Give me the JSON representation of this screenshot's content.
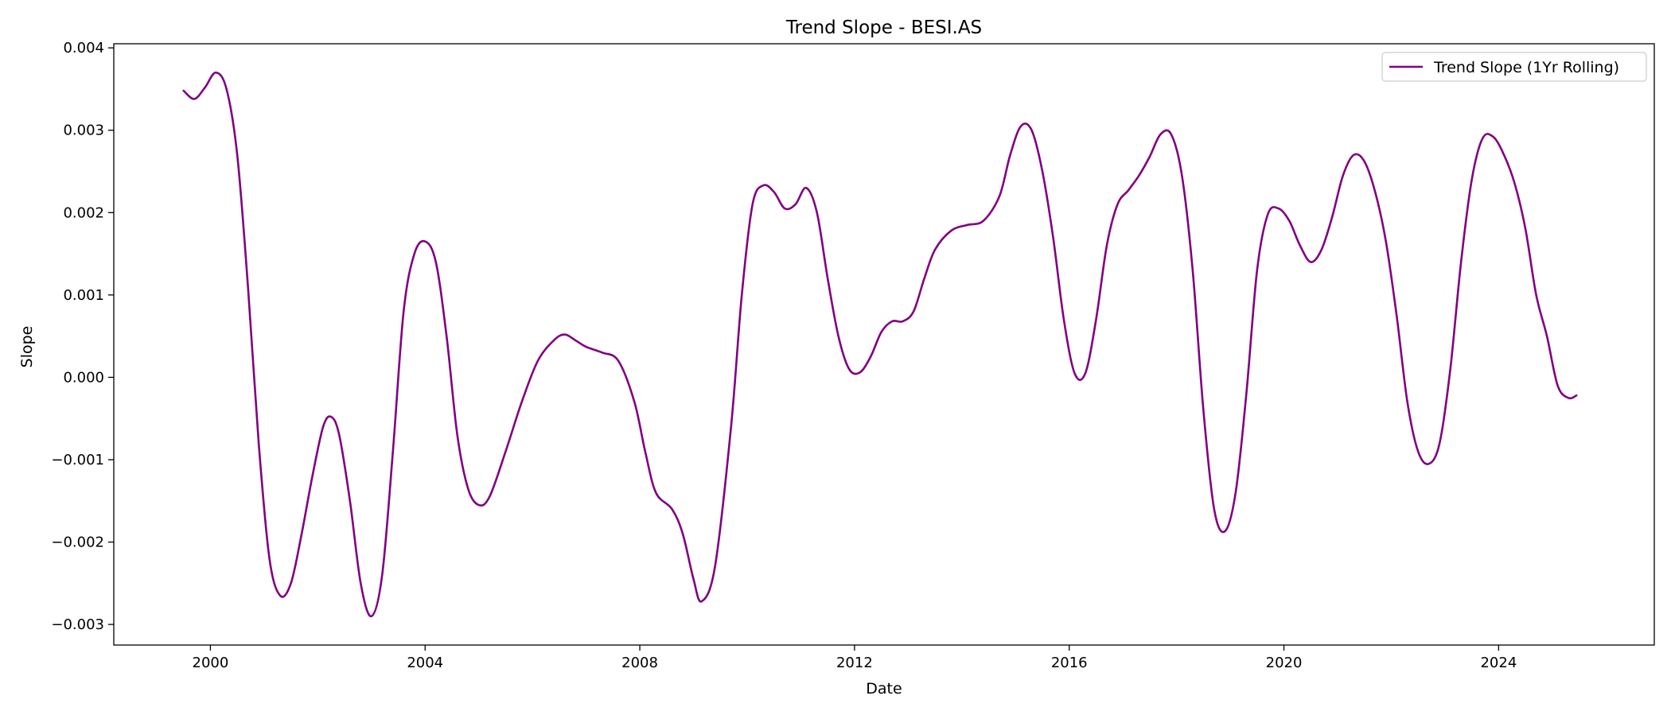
{
  "chart_data": {
    "type": "line",
    "title": "Trend Slope - BESI.AS",
    "xlabel": "Date",
    "ylabel": "Slope",
    "xlim": [
      1998.2,
      2026.9
    ],
    "ylim": [
      -0.00325,
      0.00405
    ],
    "x_ticks": [
      2000,
      2004,
      2008,
      2012,
      2016,
      2020,
      2024
    ],
    "x_tick_labels": [
      "2000",
      "2004",
      "2008",
      "2012",
      "2016",
      "2020",
      "2024"
    ],
    "y_ticks": [
      -0.003,
      -0.002,
      -0.001,
      0.0,
      0.001,
      0.002,
      0.003,
      0.004
    ],
    "y_tick_labels": [
      "−0.003",
      "−0.002",
      "−0.001",
      "0.000",
      "0.001",
      "0.002",
      "0.003",
      "0.004"
    ],
    "grid": false,
    "legend": {
      "position": "top-right"
    },
    "series": [
      {
        "name": "Trend Slope (1Yr Rolling)",
        "color": "#800080",
        "x": [
          1999.5,
          1999.7,
          1999.9,
          2000.1,
          2000.3,
          2000.5,
          2000.7,
          2000.9,
          2001.1,
          2001.3,
          2001.5,
          2001.7,
          2001.9,
          2002.1,
          2002.25,
          2002.4,
          2002.6,
          2002.8,
          2003.0,
          2003.2,
          2003.4,
          2003.6,
          2003.8,
          2004.0,
          2004.2,
          2004.4,
          2004.6,
          2004.8,
          2005.0,
          2005.2,
          2005.5,
          2005.8,
          2006.1,
          2006.4,
          2006.6,
          2006.8,
          2007.0,
          2007.3,
          2007.6,
          2007.9,
          2008.1,
          2008.3,
          2008.6,
          2008.8,
          2009.0,
          2009.15,
          2009.4,
          2009.7,
          2009.9,
          2010.1,
          2010.3,
          2010.5,
          2010.7,
          2010.9,
          2011.1,
          2011.3,
          2011.5,
          2011.7,
          2011.9,
          2012.1,
          2012.3,
          2012.5,
          2012.7,
          2012.9,
          2013.1,
          2013.3,
          2013.5,
          2013.8,
          2014.1,
          2014.4,
          2014.7,
          2014.9,
          2015.1,
          2015.3,
          2015.5,
          2015.7,
          2015.9,
          2016.1,
          2016.3,
          2016.5,
          2016.7,
          2016.9,
          2017.1,
          2017.3,
          2017.5,
          2017.7,
          2017.9,
          2018.1,
          2018.3,
          2018.5,
          2018.7,
          2018.9,
          2019.1,
          2019.3,
          2019.5,
          2019.7,
          2019.9,
          2020.1,
          2020.3,
          2020.5,
          2020.7,
          2020.9,
          2021.1,
          2021.3,
          2021.5,
          2021.7,
          2021.9,
          2022.1,
          2022.3,
          2022.5,
          2022.7,
          2022.9,
          2023.1,
          2023.3,
          2023.5,
          2023.7,
          2023.9,
          2024.1,
          2024.3,
          2024.5,
          2024.7,
          2024.9,
          2025.1,
          2025.3,
          2025.45
        ],
        "values": [
          0.00348,
          0.00338,
          0.00352,
          0.0037,
          0.0035,
          0.0027,
          0.0011,
          -0.0008,
          -0.0022,
          -0.00265,
          -0.0025,
          -0.0019,
          -0.0012,
          -0.0006,
          -0.00048,
          -0.0007,
          -0.0015,
          -0.0025,
          -0.0029,
          -0.0024,
          -0.0009,
          0.0008,
          0.0015,
          0.00165,
          0.0014,
          0.0005,
          -0.0007,
          -0.00135,
          -0.00155,
          -0.00145,
          -0.0009,
          -0.0003,
          0.0002,
          0.00045,
          0.00052,
          0.00045,
          0.00037,
          0.0003,
          0.0002,
          -0.0003,
          -0.0009,
          -0.0014,
          -0.0016,
          -0.0019,
          -0.00245,
          -0.00272,
          -0.0023,
          -0.0006,
          0.001,
          0.0021,
          0.00233,
          0.00225,
          0.00205,
          0.0021,
          0.0023,
          0.002,
          0.0012,
          0.0005,
          0.0001,
          6e-05,
          0.00025,
          0.00055,
          0.00068,
          0.00068,
          0.0008,
          0.0012,
          0.00155,
          0.00178,
          0.00185,
          0.0019,
          0.0022,
          0.0027,
          0.00305,
          0.003,
          0.0025,
          0.0017,
          0.0007,
          5e-05,
          5e-05,
          0.0007,
          0.0016,
          0.0021,
          0.00227,
          0.00245,
          0.00268,
          0.00295,
          0.00295,
          0.00245,
          0.0013,
          -0.0004,
          -0.0016,
          -0.00187,
          -0.0014,
          -0.0002,
          0.0013,
          0.00198,
          0.00205,
          0.0019,
          0.0016,
          0.0014,
          0.00155,
          0.00195,
          0.00245,
          0.0027,
          0.00262,
          0.00225,
          0.00165,
          0.00075,
          -0.0003,
          -0.0009,
          -0.00105,
          -0.0008,
          0.0001,
          0.0014,
          0.0024,
          0.0029,
          0.00292,
          0.0027,
          0.00235,
          0.0018,
          0.001,
          0.0005,
          -0.0001,
          -0.00025,
          -0.00022
        ]
      }
    ]
  }
}
